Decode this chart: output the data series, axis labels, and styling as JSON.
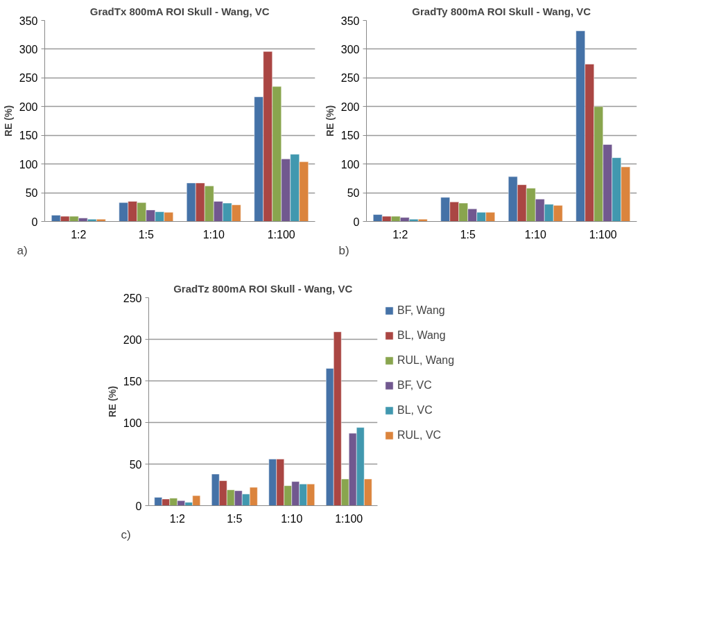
{
  "chart_data": [
    {
      "type": "bar",
      "title": "GradTx 800mA ROI Skull - Wang, VC",
      "ylabel": "RE (%)",
      "categories": [
        "1:2",
        "1:5",
        "1:10",
        "1:100"
      ],
      "ylim": [
        0,
        350
      ],
      "yticks": [
        0,
        50,
        100,
        150,
        200,
        250,
        300,
        350
      ],
      "grid": "y",
      "annotations": [
        "a)"
      ],
      "series": [
        {
          "color": "#4572a7",
          "values": [
            11,
            33,
            67,
            217
          ]
        },
        {
          "color": "#aa4643",
          "values": [
            9,
            35,
            67,
            296
          ]
        },
        {
          "color": "#89a54e",
          "values": [
            9,
            33,
            62,
            235
          ]
        },
        {
          "color": "#71588f",
          "values": [
            6,
            20,
            35,
            109
          ]
        },
        {
          "color": "#4198af",
          "values": [
            4,
            17,
            32,
            117
          ]
        },
        {
          "color": "#db843d",
          "values": [
            4,
            16,
            29,
            104
          ]
        }
      ]
    },
    {
      "type": "bar",
      "title": "GradTy 800mA ROI Skull - Wang, VC",
      "ylabel": "RE (%)",
      "categories": [
        "1:2",
        "1:5",
        "1:10",
        "1:100"
      ],
      "ylim": [
        0,
        350
      ],
      "yticks": [
        0,
        50,
        100,
        150,
        200,
        250,
        300,
        350
      ],
      "grid": "y",
      "annotations": [
        "b)"
      ],
      "series": [
        {
          "color": "#4572a7",
          "values": [
            12,
            42,
            78,
            332
          ]
        },
        {
          "color": "#aa4643",
          "values": [
            9,
            34,
            64,
            274
          ]
        },
        {
          "color": "#89a54e",
          "values": [
            9,
            32,
            58,
            200
          ]
        },
        {
          "color": "#71588f",
          "values": [
            7,
            22,
            39,
            134
          ]
        },
        {
          "color": "#4198af",
          "values": [
            4,
            16,
            30,
            111
          ]
        },
        {
          "color": "#db843d",
          "values": [
            4,
            16,
            28,
            95
          ]
        }
      ]
    },
    {
      "type": "bar",
      "title": "GradTz 800mA ROI Skull - Wang, VC",
      "ylabel": "RE (%)",
      "categories": [
        "1:2",
        "1:5",
        "1:10",
        "1:100"
      ],
      "ylim": [
        0,
        250
      ],
      "yticks": [
        0,
        50,
        100,
        150,
        200,
        250
      ],
      "grid": "y",
      "legend": "right",
      "annotations": [
        "c)"
      ],
      "series": [
        {
          "name": "BF, Wang",
          "color": "#4572a7",
          "values": [
            10,
            38,
            56,
            165
          ]
        },
        {
          "name": "BL, Wang",
          "color": "#aa4643",
          "values": [
            8,
            30,
            56,
            209
          ]
        },
        {
          "name": "RUL, Wang",
          "color": "#89a54e",
          "values": [
            9,
            19,
            24,
            32
          ]
        },
        {
          "name": "BF, VC",
          "color": "#71588f",
          "values": [
            6,
            18,
            29,
            87
          ]
        },
        {
          "name": "BL, VC",
          "color": "#4198af",
          "values": [
            4,
            14,
            26,
            94
          ]
        },
        {
          "name": "RUL, VC",
          "color": "#db843d",
          "values": [
            12,
            22,
            26,
            32
          ]
        }
      ]
    }
  ]
}
